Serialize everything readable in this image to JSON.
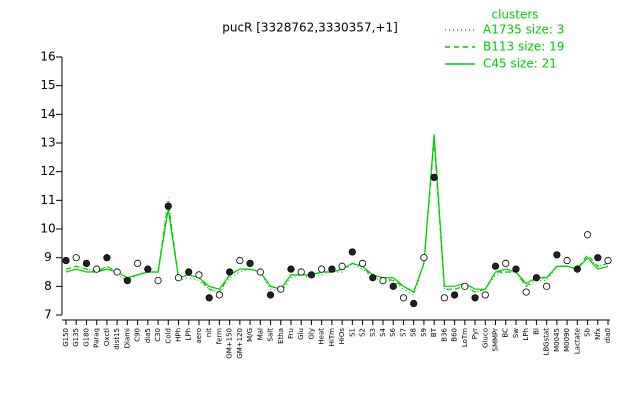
{
  "chart_data": {
    "type": "line",
    "title": "pucR [3328762,3330357,+1]",
    "legend_title": "clusters",
    "legend_position": "top-right",
    "categories": [
      "G150",
      "G135",
      "G180",
      "Paraq",
      "Oxctl",
      "dist15",
      "Diami",
      "C90",
      "dia5",
      "C30",
      "Cold",
      "HPh",
      "LPh",
      "aero",
      "nit",
      "ferm",
      "GM+150",
      "GM+120",
      "M/G",
      "Mal",
      "Salt",
      "Etha",
      "Fru",
      "Glu",
      "Gly",
      "Heat",
      "HiTm",
      "HiOs",
      "S1",
      "S2",
      "S3",
      "S4",
      "S6",
      "S7",
      "S8",
      "S9",
      "BT",
      "B36",
      "B60",
      "LoTm",
      "Pyr",
      "Gluco",
      "SMMPr",
      "BC",
      "Sw",
      "LPh",
      "Bl",
      "LBGstat",
      "M0045",
      "M0090",
      "Lactate",
      "Sb",
      "Nfx",
      "dia0"
    ],
    "series": [
      {
        "name": "A1735 size: 3",
        "color": "#00cc00",
        "dash": "dotted",
        "values": [
          8.6,
          8.7,
          8.6,
          8.5,
          8.7,
          8.4,
          8.2,
          8.4,
          8.5,
          8.5,
          11.1,
          8.2,
          8.3,
          8.2,
          7.9,
          7.8,
          8.3,
          8.5,
          8.6,
          8.5,
          7.9,
          7.8,
          8.3,
          8.4,
          8.3,
          8.4,
          8.5,
          8.5,
          8.8,
          8.6,
          8.3,
          8.2,
          8.2,
          7.9,
          7.7,
          8.8,
          13.2,
          7.9,
          7.9,
          8.0,
          7.8,
          7.9,
          8.4,
          8.5,
          8.5,
          8.0,
          8.2,
          8.2,
          8.7,
          8.7,
          8.6,
          9.0,
          8.7,
          8.8
        ]
      },
      {
        "name": "B113 size: 19",
        "color": "#00cc00",
        "dash": "dashed",
        "values": [
          8.6,
          8.7,
          8.6,
          8.5,
          8.7,
          8.5,
          8.3,
          8.4,
          8.5,
          8.5,
          10.9,
          8.3,
          8.4,
          8.3,
          7.9,
          7.8,
          8.4,
          8.6,
          8.6,
          8.5,
          8.0,
          7.9,
          8.4,
          8.4,
          8.4,
          8.5,
          8.5,
          8.6,
          8.8,
          8.7,
          8.3,
          8.3,
          8.2,
          8.0,
          7.8,
          8.8,
          13.1,
          7.9,
          7.9,
          8.0,
          7.8,
          7.9,
          8.5,
          8.5,
          8.5,
          8.0,
          8.3,
          8.3,
          8.7,
          8.7,
          8.6,
          9.1,
          8.7,
          8.8
        ]
      },
      {
        "name": "C45 size: 21",
        "color": "#00cc00",
        "dash": "solid",
        "values": [
          8.5,
          8.6,
          8.5,
          8.5,
          8.6,
          8.5,
          8.3,
          8.4,
          8.5,
          8.5,
          10.7,
          8.3,
          8.4,
          8.3,
          8.0,
          7.9,
          8.4,
          8.6,
          8.6,
          8.5,
          8.0,
          7.9,
          8.4,
          8.4,
          8.4,
          8.5,
          8.5,
          8.6,
          8.8,
          8.7,
          8.4,
          8.3,
          8.3,
          8.0,
          7.8,
          8.8,
          13.3,
          8.0,
          8.0,
          8.1,
          7.9,
          7.9,
          8.5,
          8.6,
          8.5,
          8.1,
          8.3,
          8.3,
          8.7,
          8.7,
          8.6,
          9.0,
          8.6,
          8.7
        ]
      }
    ],
    "points": [
      8.9,
      9.0,
      8.8,
      8.6,
      9.0,
      8.5,
      8.2,
      8.8,
      8.6,
      8.2,
      10.8,
      8.3,
      8.5,
      8.4,
      7.6,
      7.7,
      8.5,
      8.9,
      8.8,
      8.5,
      7.7,
      7.9,
      8.6,
      8.5,
      8.4,
      8.6,
      8.6,
      8.7,
      9.2,
      8.8,
      8.3,
      8.2,
      8.0,
      7.6,
      7.4,
      9.0,
      11.8,
      7.6,
      7.7,
      8.0,
      7.6,
      7.7,
      8.7,
      8.8,
      8.6,
      7.8,
      8.3,
      8.0,
      9.1,
      8.9,
      8.6,
      9.8,
      9.0,
      8.9
    ],
    "ylim": [
      7,
      16
    ],
    "yticks": [
      7,
      8,
      9,
      10,
      11,
      12,
      13,
      14,
      15,
      16
    ]
  }
}
